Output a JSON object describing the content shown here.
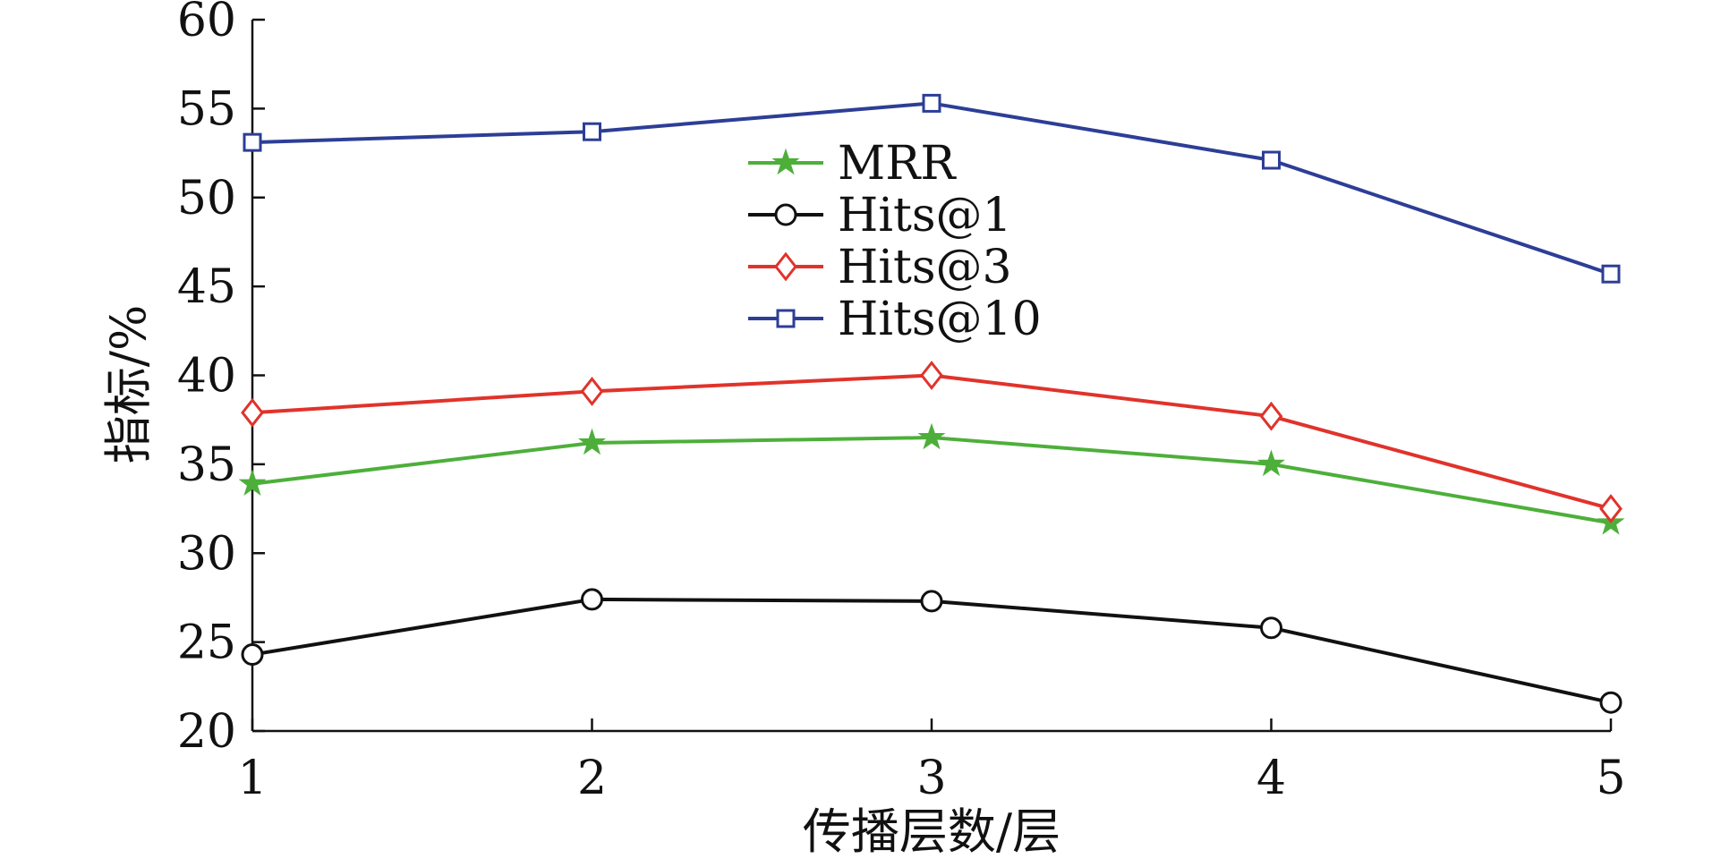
{
  "chart_data": {
    "type": "line",
    "x": [
      1,
      2,
      3,
      4,
      5
    ],
    "xlabel": "传播层数/层",
    "ylabel": "指标/%",
    "xlim": [
      1,
      5
    ],
    "ylim": [
      20,
      60
    ],
    "x_ticks": [
      "1",
      "2",
      "3",
      "4",
      "5"
    ],
    "y_ticks": [
      "20",
      "25",
      "30",
      "35",
      "40",
      "45",
      "50",
      "55",
      "60"
    ],
    "grid": false,
    "legend_position": "top-center",
    "series": [
      {
        "name": "MRR",
        "values": [
          33.9,
          36.2,
          36.5,
          35.0,
          31.7
        ],
        "color": "#4daf3a",
        "marker": "star"
      },
      {
        "name": "Hits@1",
        "values": [
          24.3,
          27.4,
          27.3,
          25.8,
          21.6
        ],
        "color": "#111111",
        "marker": "circle"
      },
      {
        "name": "Hits@3",
        "values": [
          37.9,
          39.1,
          40.0,
          37.7,
          32.5
        ],
        "color": "#e0332b",
        "marker": "diamond"
      },
      {
        "name": "Hits@10",
        "values": [
          53.1,
          53.7,
          55.3,
          52.1,
          45.7
        ],
        "color": "#2d3e96",
        "marker": "square"
      }
    ]
  }
}
